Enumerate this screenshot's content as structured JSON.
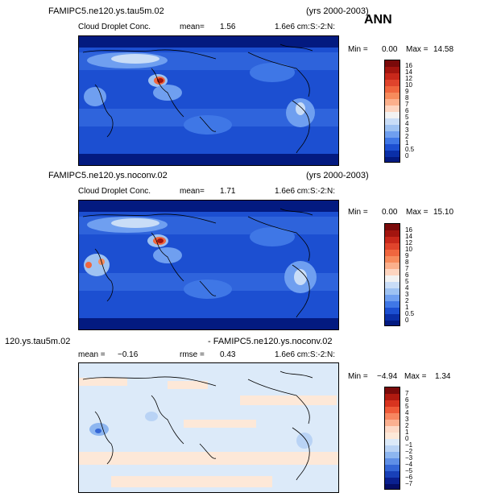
{
  "header": {
    "season": "ANN"
  },
  "panels": [
    {
      "run_label": "FAMIPC5.ne120.ys.tau5m.02",
      "years": "(yrs 2000-2003)",
      "variable": "Cloud Droplet Conc.",
      "mean_label": "mean=",
      "mean_value": "1.56",
      "units": "1.6e6 cm:S:-2:N:",
      "min_label": "Min =",
      "min_value": "0.00",
      "max_label": "Max =",
      "max_value": "14.58",
      "colorbar_labels": [
        "16",
        "14",
        "12",
        "10",
        "9",
        "8",
        "7",
        "6",
        "5",
        "4",
        "3",
        "2",
        "1",
        "0.5",
        "0"
      ]
    },
    {
      "run_label": "FAMIPC5.ne120.ys.noconv.02",
      "years": "(yrs 2000-2003)",
      "variable": "Cloud Droplet Conc.",
      "mean_label": "mean=",
      "mean_value": "1.71",
      "units": "1.6e6 cm:S:-2:N:",
      "min_label": "Min =",
      "min_value": "0.00",
      "max_label": "Max =",
      "max_value": "15.10",
      "colorbar_labels": [
        "16",
        "14",
        "12",
        "10",
        "9",
        "8",
        "7",
        "6",
        "5",
        "4",
        "3",
        "2",
        "1",
        "0.5",
        "0"
      ]
    },
    {
      "run_label": "120.ys.tau5m.02",
      "diff_label": "- FAMIPC5.ne120.ys.noconv.02",
      "mean_label": "mean =",
      "mean_value": "−0.16",
      "rmse_label": "rmse =",
      "rmse_value": "0.43",
      "units": "1.6e6 cm:S:-2:N:",
      "min_label": "Min =",
      "min_value": "−4.94",
      "max_label": "Max =",
      "max_value": "1.34",
      "colorbar_labels": [
        "7",
        "6",
        "5",
        "4",
        "3",
        "2",
        "1",
        "0",
        "−1",
        "−2",
        "−3",
        "−4",
        "−5",
        "−6",
        "−7"
      ]
    }
  ],
  "colors": {
    "seq_scale": [
      "#7a0a0a",
      "#a3150f",
      "#c8281b",
      "#e0442c",
      "#f0663e",
      "#f78b5c",
      "#fbb08c",
      "#fdd5c0",
      "#f2f2f2",
      "#c9ddf7",
      "#9ec2f2",
      "#6f9ff0",
      "#3f77e6",
      "#1c4fd1",
      "#0a2fa8",
      "#031a80"
    ],
    "div_scale": [
      "#7a0a0a",
      "#b01a10",
      "#d8341f",
      "#ef5a38",
      "#f88660",
      "#fbb090",
      "#fdd9c6",
      "#fde8d8",
      "#dceaf9",
      "#b9d3f5",
      "#8db6f0",
      "#5f8fe6",
      "#3466d6",
      "#1840b8",
      "#0a2090",
      "#050e68"
    ]
  }
}
